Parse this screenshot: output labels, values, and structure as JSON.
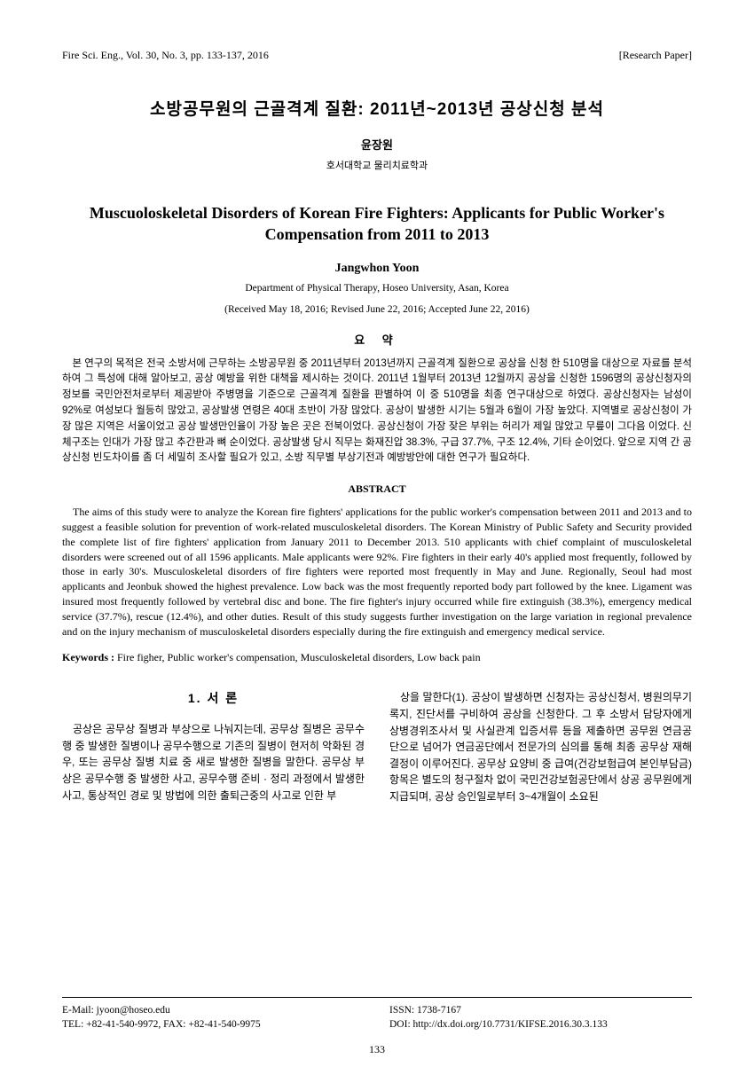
{
  "header": {
    "journal": "Fire Sci. Eng., Vol. 30, No. 3, pp. 133-137, 2016",
    "type": "[Research Paper]"
  },
  "title_ko": "소방공무원의 근골격계 질환: 2011년~2013년 공상신청 분석",
  "author_ko": "윤장원",
  "affil_ko": "호서대학교 물리치료학과",
  "title_en": "Muscuoloskeletal Disorders of Korean Fire Fighters: Applicants for Public Worker's Compensation from 2011 to 2013",
  "author_en": "Jangwhon Yoon",
  "affil_en": "Department of Physical Therapy, Hoseo University, Asan, Korea",
  "dates": "(Received May 18, 2016; Revised June 22, 2016; Accepted June 22, 2016)",
  "abstract_heading_ko": "요 약",
  "abstract_ko": "본 연구의 목적은 전국 소방서에 근무하는 소방공무원 중 2011년부터 2013년까지 근골격계 질환으로 공상을 신청 한 510명을 대상으로 자료를 분석하여 그 특성에 대해 알아보고, 공상 예방을 위한 대책을 제시하는 것이다. 2011년 1월부터 2013년 12월까지 공상을 신청한 1596명의 공상신청자의 정보를 국민안전처로부터 제공받아 주병명을 기준으로 근골격계 질환을 판별하여 이 중 510명을 최종 연구대상으로 하였다. 공상신청자는 남성이 92%로 여성보다 월등히 많았고, 공상발생 연령은 40대 초반이 가장 많았다. 공상이 발생한 시기는 5월과 6월이 가장 높았다. 지역별로 공상신청이 가장 많은 지역은 서울이었고 공상 발생만인율이 가장 높은 곳은 전북이었다. 공상신청이 가장 잦은 부위는 허리가 제일 많았고 무릎이 그다음 이었다. 신체구조는 인대가 가장 많고 추간판과 뼈 순이었다. 공상발생 당시 직무는 화재진압 38.3%, 구급 37.7%, 구조 12.4%, 기타 순이었다. 앞으로 지역 간 공상신청 빈도차이를 좀 더 세밀히 조사할 필요가 있고, 소방 직무별 부상기전과 예방방안에 대한 연구가 필요하다.",
  "abstract_heading_en": "ABSTRACT",
  "abstract_en": "The aims of this study were to analyze the Korean fire fighters' applications for the public worker's compensation between 2011 and 2013 and to suggest a feasible solution for prevention of work-related musculoskeletal disorders. The Korean Ministry of Public Safety and Security provided the complete list of fire fighters' application from January 2011 to December 2013. 510 applicants with chief complaint of musculoskeletal disorders were screened out of all 1596 applicants. Male applicants were 92%. Fire fighters in their early 40's applied most frequently, followed by those in early 30's. Musculoskeletal disorders of fire fighters were reported most frequently in May and June. Regionally, Seoul had most applicants and Jeonbuk showed the highest prevalence. Low back was the most frequently reported body part followed by the knee. Ligament was insured most frequently followed by vertebral disc and bone. The fire fighter's injury occurred while fire extinguish (38.3%), emergency medical service (37.7%), rescue (12.4%), and other duties. Result of this study suggests further investigation on the large variation in regional prevalence and on the injury mechanism of musculoskeletal disorders especially during the fire extinguish and emergency medical service.",
  "keywords_label": "Keywords :",
  "keywords": " Fire figher, Public worker's compensation, Musculoskeletal disorders, Low back pain",
  "section1_heading": "1. 서 론",
  "col1_text": "공상은 공무상 질병과 부상으로 나눠지는데, 공무상 질병은 공무수행 중 발생한 질병이나 공무수행으로 기존의 질병이 현저히 악화된 경우, 또는 공무상 질병 치료 중 새로 발생한 질병을 말한다. 공무상 부상은 공무수행 중 발생한 사고, 공무수행 준비 · 정리 과정에서 발생한 사고, 통상적인 경로 및 방법에 의한 출퇴근중의 사고로 인한 부",
  "col2_text": "상을 말한다(1). 공상이 발생하면 신청자는 공상신청서, 병원의무기록지, 진단서를 구비하여 공상을 신청한다. 그 후 소방서 담당자에게 상병경위조사서 및 사실관계 입증서류 등을 제출하면 공무원 연금공단으로 넘어가 연금공단에서 전문가의 심의를 통해 최종 공무상 재해결정이 이루어진다. 공무상 요양비 중 급여(건강보험급여 본인부담금)항목은 별도의 청구절차 없이 국민건강보험공단에서 상공 공무원에게 지급되며, 공상 승인일로부터 3~4개월이 소요된",
  "footer": {
    "email": "E-Mail: jyoon@hoseo.edu",
    "tel": "TEL: +82-41-540-9972, FAX: +82-41-540-9975",
    "issn": "ISSN: 1738-7167",
    "doi": "DOI: http://dx.doi.org/10.7731/KIFSE.2016.30.3.133"
  },
  "page_number": "133"
}
